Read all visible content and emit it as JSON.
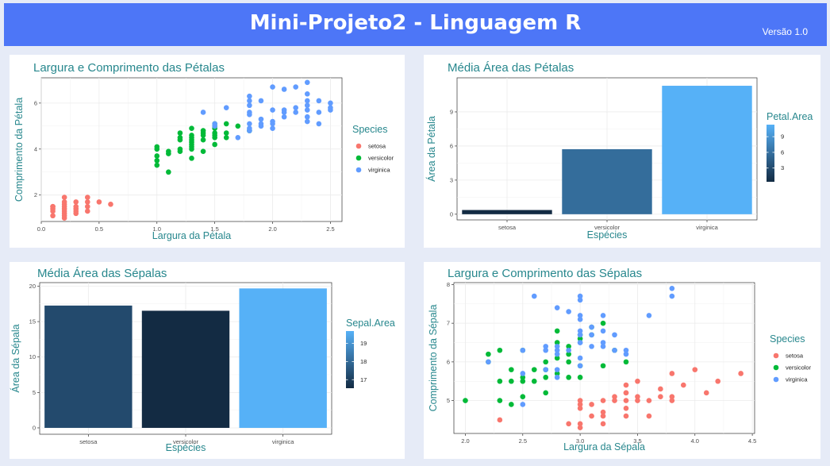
{
  "header": {
    "title": "Mini-Projeto2 - Linguagem R",
    "version": "Versão 1.0"
  },
  "colors": {
    "header_bg": "#4d76f7",
    "teal": "#27878d",
    "setosa": "#f8766d",
    "versicolor": "#00ba38",
    "virginica": "#619cff",
    "gradient_low": "#132b43",
    "gradient_high": "#56b1f7"
  },
  "chart_data": [
    {
      "id": "petal-scatter",
      "type": "scatter",
      "title": "Largura e Comprimento das Pétalas",
      "xlabel": "Largura da Pétala",
      "ylabel": "Comprimento da Pétala",
      "xlim": [
        0,
        2.6
      ],
      "ylim": [
        0.85,
        7.1
      ],
      "xticks": [
        0.0,
        0.5,
        1.0,
        1.5,
        2.0,
        2.5
      ],
      "xtick_labels": [
        "0.0",
        "0.5",
        "1.0",
        "1.5",
        "2.0",
        "2.5"
      ],
      "yticks": [
        2,
        4,
        6
      ],
      "ytick_labels": [
        "2",
        "4",
        "6"
      ],
      "grid": true,
      "legend": {
        "title": "Species",
        "position": "right"
      },
      "series": [
        {
          "name": "setosa",
          "color": "#f8766d",
          "x": [
            0.1,
            0.1,
            0.1,
            0.1,
            0.1,
            0.2,
            0.2,
            0.2,
            0.2,
            0.2,
            0.2,
            0.2,
            0.2,
            0.2,
            0.3,
            0.3,
            0.3,
            0.3,
            0.3,
            0.4,
            0.4,
            0.4,
            0.4,
            0.5,
            0.6
          ],
          "y": [
            1.1,
            1.4,
            1.5,
            1.3,
            1.5,
            1.0,
            1.2,
            1.3,
            1.4,
            1.5,
            1.6,
            1.7,
            1.9,
            1.1,
            1.3,
            1.4,
            1.5,
            1.7,
            1.2,
            1.3,
            1.5,
            1.7,
            1.9,
            1.7,
            1.6
          ]
        },
        {
          "name": "versicolor",
          "color": "#00ba38",
          "x": [
            1.0,
            1.0,
            1.0,
            1.0,
            1.0,
            1.1,
            1.1,
            1.1,
            1.2,
            1.2,
            1.2,
            1.2,
            1.2,
            1.3,
            1.3,
            1.3,
            1.3,
            1.3,
            1.3,
            1.3,
            1.3,
            1.3,
            1.4,
            1.4,
            1.4,
            1.4,
            1.4,
            1.5,
            1.5,
            1.5,
            1.5,
            1.5,
            1.5,
            1.5,
            1.6,
            1.6,
            1.6,
            1.7,
            1.8
          ],
          "y": [
            3.3,
            3.5,
            3.7,
            4.0,
            4.1,
            3.0,
            3.8,
            3.9,
            3.9,
            4.0,
            4.4,
            4.5,
            4.7,
            3.6,
            4.0,
            4.1,
            4.2,
            4.3,
            4.4,
            4.5,
            4.6,
            4.9,
            3.9,
            4.4,
            4.6,
            4.7,
            4.8,
            4.2,
            4.5,
            4.6,
            4.7,
            4.9,
            5.0,
            5.1,
            4.5,
            4.7,
            5.1,
            5.0,
            4.8
          ]
        },
        {
          "name": "virginica",
          "color": "#619cff",
          "x": [
            1.4,
            1.5,
            1.5,
            1.6,
            1.7,
            1.8,
            1.8,
            1.8,
            1.8,
            1.8,
            1.8,
            1.8,
            1.8,
            1.9,
            1.9,
            1.9,
            1.9,
            2.0,
            2.0,
            2.0,
            2.0,
            2.0,
            2.1,
            2.1,
            2.1,
            2.1,
            2.2,
            2.2,
            2.2,
            2.3,
            2.3,
            2.3,
            2.3,
            2.3,
            2.3,
            2.3,
            2.4,
            2.4,
            2.4,
            2.5,
            2.5,
            2.5
          ],
          "y": [
            5.6,
            5.0,
            5.1,
            5.8,
            4.5,
            4.8,
            4.9,
            5.1,
            5.5,
            5.6,
            5.9,
            6.1,
            6.3,
            5.0,
            5.1,
            5.3,
            6.1,
            4.9,
            5.1,
            5.2,
            5.7,
            6.7,
            5.4,
            5.6,
            5.7,
            6.6,
            5.6,
            5.8,
            6.7,
            5.2,
            5.4,
            5.7,
            5.9,
            6.1,
            6.4,
            6.9,
            5.1,
            5.6,
            6.1,
            5.7,
            5.8,
            6.0
          ]
        }
      ]
    },
    {
      "id": "petal-area-bar",
      "type": "bar",
      "title": "Média Área das Pétalas",
      "xlabel": "Espécies",
      "ylabel": "Área da Pétala",
      "categories": [
        "setosa",
        "versicolor",
        "virginica"
      ],
      "values": [
        0.37,
        5.72,
        11.3
      ],
      "ylim": [
        -0.5,
        12.0
      ],
      "yticks": [
        0,
        3,
        6,
        9
      ],
      "ytick_labels": [
        "0",
        "3",
        "6",
        "9"
      ],
      "grid": true,
      "colorbar": {
        "title": "Petal.Area",
        "ticks": [
          3,
          6,
          9
        ],
        "tick_labels": [
          "3",
          "6",
          "9"
        ],
        "range": [
          0.37,
          11.3
        ]
      }
    },
    {
      "id": "sepal-area-bar",
      "type": "bar",
      "title": "Média Área das Sépalas",
      "xlabel": "Espécies",
      "ylabel": "Área da Sépala",
      "categories": [
        "setosa",
        "versicolor",
        "virginica"
      ],
      "values": [
        17.26,
        16.53,
        19.68
      ],
      "ylim": [
        -0.9,
        20.5
      ],
      "yticks": [
        0,
        5,
        10,
        15,
        20
      ],
      "ytick_labels": [
        "0",
        "5",
        "10",
        "15",
        "20"
      ],
      "grid": true,
      "colorbar": {
        "title": "Sepal.Area",
        "ticks": [
          17,
          18,
          19
        ],
        "tick_labels": [
          "17",
          "18",
          "19"
        ],
        "range": [
          16.53,
          19.68
        ]
      }
    },
    {
      "id": "sepal-scatter",
      "type": "scatter",
      "title": "Largura e Comprimento das Sépalas",
      "xlabel": "Largura da Sépala",
      "ylabel": "Comprimento da Sépala",
      "xlim": [
        1.9,
        4.52
      ],
      "ylim": [
        4.15,
        8.05
      ],
      "xticks": [
        2.0,
        2.5,
        3.0,
        3.5,
        4.0,
        4.5
      ],
      "xtick_labels": [
        "2.0",
        "2.5",
        "3.0",
        "3.5",
        "4.0",
        "4.5"
      ],
      "yticks": [
        5,
        6,
        7,
        8
      ],
      "ytick_labels": [
        "5",
        "6",
        "7",
        "8"
      ],
      "grid": true,
      "legend": {
        "title": "Species",
        "position": "right"
      },
      "series": [
        {
          "name": "setosa",
          "color": "#f8766d",
          "x": [
            2.3,
            2.9,
            3.0,
            3.0,
            3.0,
            3.0,
            3.1,
            3.1,
            3.2,
            3.2,
            3.2,
            3.3,
            3.3,
            3.4,
            3.4,
            3.4,
            3.4,
            3.4,
            3.5,
            3.5,
            3.5,
            3.6,
            3.6,
            3.7,
            3.7,
            3.8,
            3.8,
            3.8,
            3.9,
            4.0,
            4.1,
            4.2,
            4.4,
            3.0,
            3.2,
            3.4
          ],
          "y": [
            4.5,
            4.4,
            4.3,
            4.4,
            4.8,
            5.0,
            4.6,
            4.9,
            4.4,
            4.7,
            5.0,
            5.0,
            5.1,
            4.6,
            4.8,
            5.0,
            5.2,
            5.4,
            5.0,
            5.1,
            5.5,
            4.6,
            5.0,
            5.3,
            5.1,
            5.1,
            5.7,
            5.0,
            5.4,
            5.8,
            5.2,
            5.5,
            5.7,
            4.9,
            4.6,
            5.2
          ]
        },
        {
          "name": "versicolor",
          "color": "#00ba38",
          "x": [
            2.0,
            2.2,
            2.2,
            2.3,
            2.3,
            2.3,
            2.4,
            2.4,
            2.4,
            2.5,
            2.5,
            2.5,
            2.5,
            2.6,
            2.6,
            2.7,
            2.7,
            2.7,
            2.7,
            2.8,
            2.8,
            2.8,
            2.8,
            2.9,
            2.9,
            2.9,
            2.9,
            3.0,
            3.0,
            3.0,
            3.0,
            3.1,
            3.1,
            3.2,
            3.2,
            3.3,
            3.4
          ],
          "y": [
            5.0,
            6.0,
            6.2,
            5.0,
            5.5,
            6.3,
            4.9,
            5.5,
            5.8,
            5.1,
            5.5,
            5.6,
            6.3,
            5.5,
            5.8,
            5.2,
            5.6,
            5.8,
            6.0,
            5.7,
            6.1,
            6.5,
            6.8,
            5.6,
            6.0,
            6.2,
            6.4,
            5.6,
            5.9,
            6.6,
            6.7,
            6.7,
            6.9,
            5.9,
            7.0,
            6.3,
            6.0
          ]
        },
        {
          "name": "virginica",
          "color": "#619cff",
          "x": [
            2.2,
            2.5,
            2.5,
            2.5,
            2.6,
            2.7,
            2.7,
            2.7,
            2.8,
            2.8,
            2.8,
            2.8,
            2.8,
            2.8,
            2.9,
            2.9,
            3.0,
            3.0,
            3.0,
            3.0,
            3.0,
            3.0,
            3.0,
            3.0,
            3.0,
            3.0,
            3.1,
            3.1,
            3.1,
            3.2,
            3.2,
            3.2,
            3.2,
            3.3,
            3.3,
            3.4,
            3.4,
            3.6,
            3.8,
            3.8
          ],
          "y": [
            6.0,
            4.9,
            5.7,
            6.3,
            7.7,
            5.8,
            6.3,
            6.4,
            5.6,
            5.8,
            6.2,
            6.3,
            6.4,
            7.4,
            6.3,
            7.3,
            6.5,
            6.7,
            6.8,
            7.1,
            7.2,
            7.6,
            7.7,
            5.9,
            6.1,
            6.5,
            6.4,
            6.7,
            6.9,
            6.4,
            6.5,
            6.8,
            7.2,
            6.3,
            6.7,
            6.2,
            6.3,
            7.2,
            7.7,
            7.9
          ]
        }
      ]
    }
  ]
}
